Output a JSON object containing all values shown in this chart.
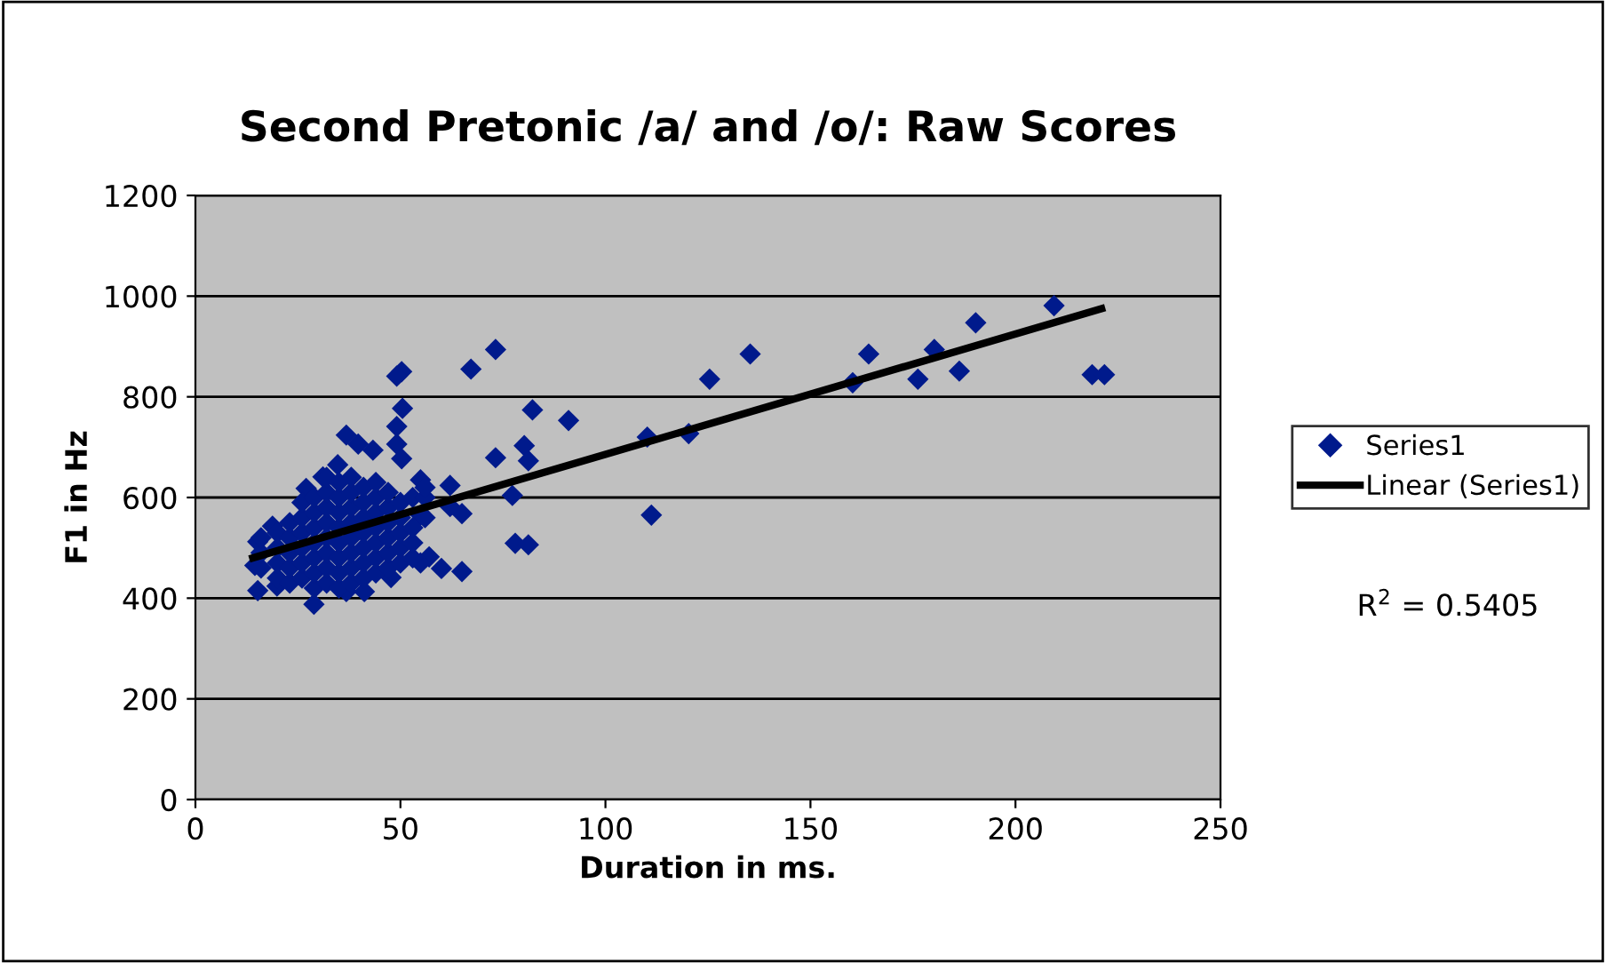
{
  "chart_data": {
    "type": "scatter",
    "title": "Second Pretonic /a/ and /o/: Raw Scores",
    "xlabel": "Duration in ms.",
    "ylabel": "F1 in Hz",
    "xlim": [
      0,
      250
    ],
    "xticks": [
      0,
      50,
      100,
      150,
      200,
      250
    ],
    "ylim": [
      0,
      1200
    ],
    "yticks": [
      0,
      200,
      400,
      600,
      800,
      1000,
      1200
    ],
    "grid": "y",
    "legend": "right",
    "marker": "diamond",
    "annotations": [
      "R$^{2}$ = 0.5405"
    ],
    "series": [
      {
        "name": "Series1",
        "color": "#001a8c",
        "x": [
          218.7,
          221.7,
          209.4,
          190.3,
          186.3,
          180.2,
          176.2,
          164.2,
          160.3,
          135.3,
          125.4,
          120.3,
          110.2,
          111.2,
          91,
          82.2,
          73.2,
          73.2,
          80.2,
          81.2,
          77.3,
          78,
          81.2,
          50.3,
          49.1,
          67.2,
          50.5,
          49.1,
          49.1,
          50.3,
          36.8,
          39.7,
          43.3,
          62.1,
          65,
          62.1,
          54.9,
          54.9,
          57,
          60,
          65,
          54.9,
          47.7,
          41.2,
          36.8,
          28.9,
          15.2,
          19.9,
          27,
          34.7,
          31.1,
          18.8,
          15.2,
          14.5,
          16,
          16,
          16,
          20,
          20,
          20,
          20,
          23,
          23,
          23,
          23,
          23,
          26,
          26,
          26,
          26,
          26,
          26,
          29,
          29,
          29,
          29,
          29,
          29,
          29,
          32,
          32,
          32,
          32,
          32,
          32,
          32,
          32,
          35,
          35,
          35,
          35,
          35,
          35,
          35,
          35,
          38,
          38,
          38,
          38,
          38,
          38,
          38,
          38,
          41,
          41,
          41,
          41,
          41,
          41,
          41,
          44,
          44,
          44,
          44,
          44,
          44,
          44,
          47,
          47,
          47,
          47,
          47,
          47,
          50,
          50,
          50,
          50,
          50,
          53,
          53,
          53,
          53,
          56,
          56,
          56
        ],
        "values": [
          844,
          844,
          981,
          947,
          851,
          894,
          835,
          885,
          828,
          885,
          835,
          727,
          720,
          565,
          753,
          774,
          894,
          679,
          703,
          673,
          604,
          509,
          506,
          850,
          841,
          855,
          777,
          741,
          706,
          677,
          724,
          706,
          694,
          624,
          568,
          582,
          635,
          565,
          482,
          459,
          453,
          470,
          441,
          413,
          413,
          388,
          415,
          424,
          618,
          665,
          641,
          543,
          512,
          465,
          460,
          490,
          520,
          440,
          470,
          500,
          530,
          430,
          460,
          490,
          520,
          550,
          440,
          470,
          500,
          530,
          560,
          590,
          420,
          450,
          480,
          510,
          540,
          570,
          600,
          430,
          460,
          490,
          520,
          550,
          580,
          610,
          640,
          420,
          450,
          480,
          510,
          540,
          570,
          600,
          630,
          430,
          460,
          490,
          520,
          550,
          580,
          610,
          640,
          440,
          470,
          500,
          530,
          560,
          590,
          620,
          450,
          480,
          510,
          540,
          570,
          600,
          630,
          460,
          490,
          520,
          550,
          580,
          610,
          470,
          500,
          530,
          560,
          590,
          480,
          510,
          540,
          600,
          560,
          600,
          620
        ]
      },
      {
        "name": "Linear (Series1)",
        "type": "line",
        "color": "#000000",
        "marker": "none",
        "line_style": "solid",
        "x": [
          14,
          221
        ],
        "values": [
          480,
          975
        ]
      }
    ]
  }
}
